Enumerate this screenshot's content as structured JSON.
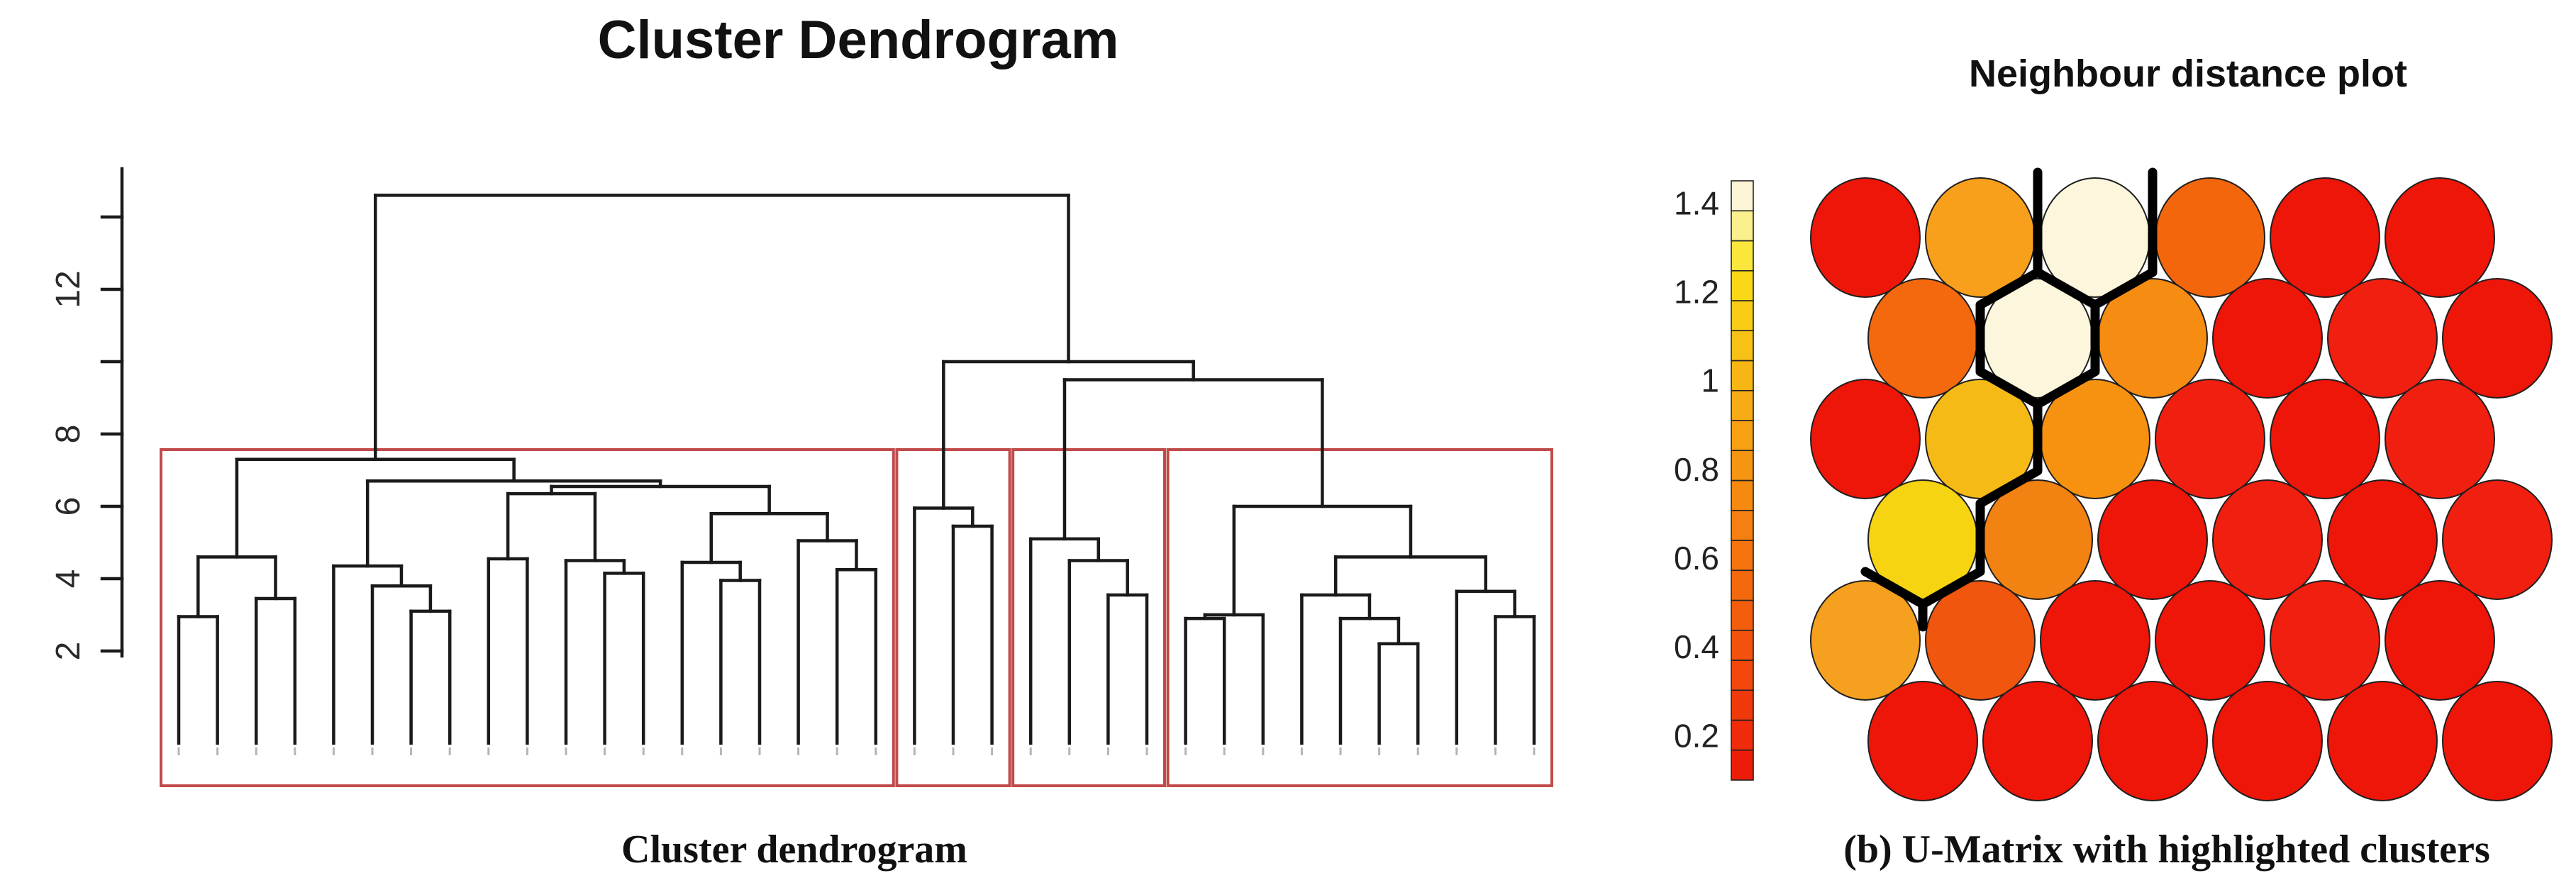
{
  "chart_data": [
    {
      "type": "dendrogram",
      "title": "Cluster Dendrogram",
      "caption": "Cluster dendrogram",
      "ylabel": "",
      "ylim": [
        2,
        14
      ],
      "y_ticks": [
        2,
        4,
        6,
        8,
        10,
        12,
        14
      ],
      "y_tick_labels_shown": [
        "2",
        "4",
        "6",
        "8",
        "12"
      ],
      "y_ticks_labeled": [
        2,
        4,
        6,
        8,
        12
      ],
      "n_leaves": 36,
      "root_height": 14.6,
      "line_color": "#1a1a1a",
      "box_color": "#C14B4B",
      "cluster_boxes": [
        {
          "leaf_from": 0,
          "leaf_to": 18
        },
        {
          "leaf_from": 19,
          "leaf_to": 21
        },
        {
          "leaf_from": 22,
          "leaf_to": 25
        },
        {
          "leaf_from": 26,
          "leaf_to": 35
        }
      ],
      "tree": [
        "m",
        14.6,
        [
          "m",
          7.3,
          [
            "m",
            4.6,
            [
              "m",
              2.95,
              [
                "l",
                0
              ],
              [
                "l",
                1
              ]
            ],
            [
              "m",
              3.45,
              [
                "l",
                2
              ],
              [
                "l",
                3
              ]
            ]
          ],
          [
            "m",
            6.7,
            [
              "m",
              4.35,
              [
                "l",
                4
              ],
              [
                "m",
                3.8,
                [
                  "l",
                  5
                ],
                [
                  "m",
                  3.1,
                  [
                    "l",
                    6
                  ],
                  [
                    "l",
                    7
                  ]
                ]
              ]
            ],
            [
              "m",
              6.55,
              [
                "m",
                6.35,
                [
                  "m",
                  4.55,
                  [
                    "l",
                    8
                  ],
                  [
                    "l",
                    9
                  ]
                ],
                [
                  "m",
                  4.5,
                  [
                    "l",
                    10
                  ],
                  [
                    "m",
                    4.15,
                    [
                      "l",
                      11
                    ],
                    [
                      "l",
                      12
                    ]
                  ]
                ]
              ],
              [
                "m",
                5.8,
                [
                  "m",
                  4.45,
                  [
                    "l",
                    13
                  ],
                  [
                    "m",
                    3.95,
                    [
                      "l",
                      14
                    ],
                    [
                      "l",
                      15
                    ]
                  ]
                ],
                [
                  "m",
                  5.05,
                  [
                    "l",
                    16
                  ],
                  [
                    "m",
                    4.25,
                    [
                      "l",
                      17
                    ],
                    [
                      "l",
                      18
                    ]
                  ]
                ]
              ]
            ]
          ]
        ],
        [
          "m",
          10.0,
          [
            "m",
            5.95,
            [
              "l",
              19
            ],
            [
              "m",
              5.45,
              [
                "l",
                20
              ],
              [
                "l",
                21
              ]
            ]
          ],
          [
            "m",
            9.5,
            [
              "m",
              5.1,
              [
                "l",
                22
              ],
              [
                "m",
                4.5,
                [
                  "l",
                  23
                ],
                [
                  "m",
                  3.55,
                  [
                    "l",
                    24
                  ],
                  [
                    "l",
                    25
                  ]
                ]
              ]
            ],
            [
              "m",
              6.0,
              [
                "m",
                3.0,
                [
                  "m",
                  2.9,
                  [
                    "l",
                    26
                  ],
                  [
                    "l",
                    27
                  ]
                ],
                [
                  "l",
                  28
                ]
              ],
              [
                "m",
                4.6,
                [
                  "m",
                  3.55,
                  [
                    "l",
                    29
                  ],
                  [
                    "m",
                    2.9,
                    [
                      "l",
                      30
                    ],
                    [
                      "m",
                      2.2,
                      [
                        "l",
                        31
                      ],
                      [
                        "l",
                        32
                      ]
                    ]
                  ]
                ],
                [
                  "m",
                  3.65,
                  [
                    "l",
                    33
                  ],
                  [
                    "m",
                    2.95,
                    [
                      "l",
                      34
                    ],
                    [
                      "l",
                      35
                    ]
                  ]
                ]
              ]
            ]
          ]
        ]
      ]
    },
    {
      "type": "heatmap",
      "title": "Neighbour distance plot",
      "caption": "(b) U-Matrix with highlighted clusters",
      "layout": "hexagonal-som-grid",
      "rows": 6,
      "cols": 6,
      "legend_position": "left",
      "values": [
        [
          0.15,
          0.75,
          1.35,
          0.55,
          0.15,
          0.15
        ],
        [
          0.55,
          1.35,
          0.65,
          0.15,
          0.15,
          0.15
        ],
        [
          0.15,
          0.85,
          0.7,
          0.15,
          0.15,
          0.15
        ],
        [
          1.0,
          0.6,
          0.15,
          0.15,
          0.15,
          0.15
        ],
        [
          0.75,
          0.35,
          0.15,
          0.15,
          0.15,
          0.15
        ],
        [
          0.15,
          0.15,
          0.15,
          0.15,
          0.15,
          0.15
        ]
      ],
      "cell_colors": [
        [
          "#EE1509",
          "#F8A01B",
          "#FBF6DC",
          "#F4660C",
          "#EE1509",
          "#EE1509"
        ],
        [
          "#F4690D",
          "#FBF6DC",
          "#F68C12",
          "#EE1509",
          "#F01F0F",
          "#EE1509"
        ],
        [
          "#EE1509",
          "#F6BA17",
          "#F79110",
          "#F01F0F",
          "#EE1509",
          "#F01F0F"
        ],
        [
          "#F7D412",
          "#F28211",
          "#EE1509",
          "#F01F0F",
          "#EE1509",
          "#F01F0F"
        ],
        [
          "#F5A01F",
          "#F0560D",
          "#EE1509",
          "#EE1509",
          "#F01F0F",
          "#EE1509"
        ],
        [
          "#EE1509",
          "#EE1509",
          "#EE1509",
          "#EE1509",
          "#EE1509",
          "#EE1509"
        ]
      ],
      "cell_outline": "#1f1f1f",
      "colorbar": {
        "labels": [
          "1.4",
          "1.2",
          "1",
          "0.8",
          "0.6",
          "0.4",
          "0.2"
        ],
        "label_values": [
          1.4,
          1.2,
          1.0,
          0.8,
          0.6,
          0.4,
          0.2
        ],
        "min": 0.1,
        "max": 1.45,
        "colors_bottom_to_top": [
          "#ED1C09",
          "#EF2B09",
          "#F0390A",
          "#F2460B",
          "#F3520C",
          "#F35E0D",
          "#F4690E",
          "#F5740F",
          "#F57F10",
          "#F68A11",
          "#F69512",
          "#F7A013",
          "#F7AB14",
          "#F8B615",
          "#F8C116",
          "#F9CC17",
          "#FAD818",
          "#FBE63B",
          "#FCEF8E",
          "#FCF5D7"
        ]
      },
      "boundary_color": "#000000",
      "cluster_boundary_paths": [
        [
          [
            2873,
            243
          ],
          [
            2873,
            384
          ]
        ],
        [
          [
            2873,
            384
          ],
          [
            2954,
            430
          ],
          [
            2954,
            524
          ],
          [
            2873,
            570
          ],
          [
            2792,
            524
          ],
          [
            2792,
            430
          ],
          [
            2873,
            384
          ]
        ],
        [
          [
            3035,
            243
          ],
          [
            3035,
            384
          ],
          [
            2954,
            430
          ]
        ],
        [
          [
            2873,
            570
          ],
          [
            2873,
            664
          ],
          [
            2792,
            710
          ],
          [
            2792,
            806
          ],
          [
            2711,
            852
          ],
          [
            2630,
            806
          ]
        ],
        [
          [
            2711,
            852
          ],
          [
            2711,
            884
          ]
        ]
      ]
    }
  ]
}
